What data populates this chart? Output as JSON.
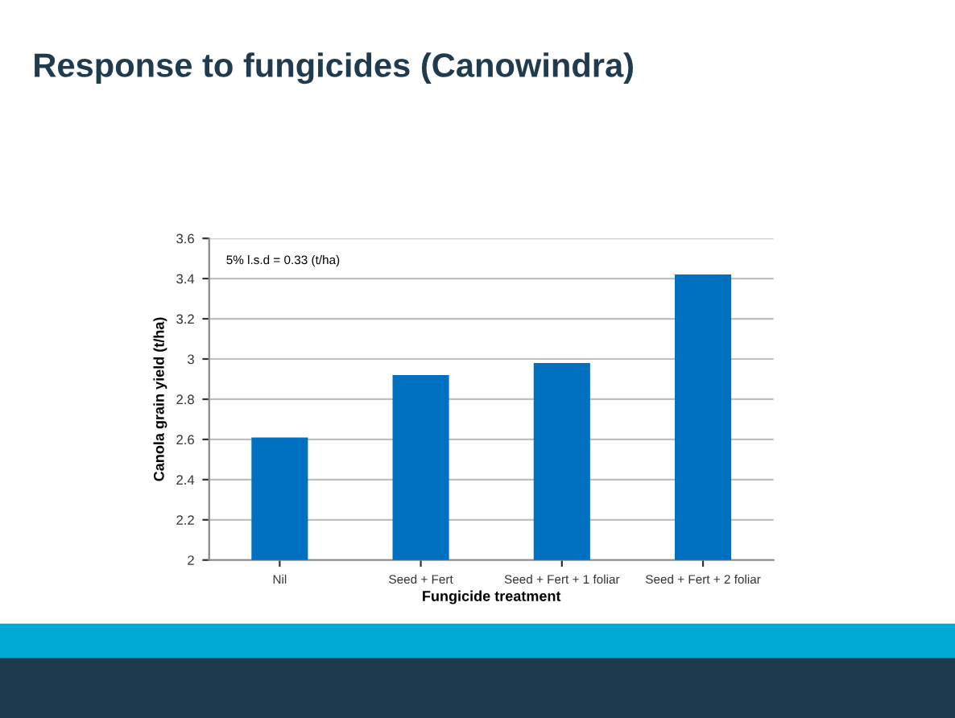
{
  "chart_data": {
    "type": "bar",
    "title": "Response to fungicides (Canowindra)",
    "categories": [
      "Nil",
      "Seed + Fert",
      "Seed + Fert + 1 foliar",
      "Seed + Fert + 2 foliar"
    ],
    "values": [
      2.61,
      2.92,
      2.98,
      3.42
    ],
    "color": "#0070c0",
    "xlabel": "Fungicide treatment",
    "ylabel": "Canola grain yield (t/ha)",
    "ylim": [
      2,
      3.6
    ],
    "yticks": [
      2,
      2.2,
      2.4,
      2.6,
      2.8,
      3,
      3.2,
      3.4,
      3.6
    ],
    "grid": "y",
    "annotations": [
      "5% l.s.d = 0.33 (t/ha)"
    ]
  }
}
